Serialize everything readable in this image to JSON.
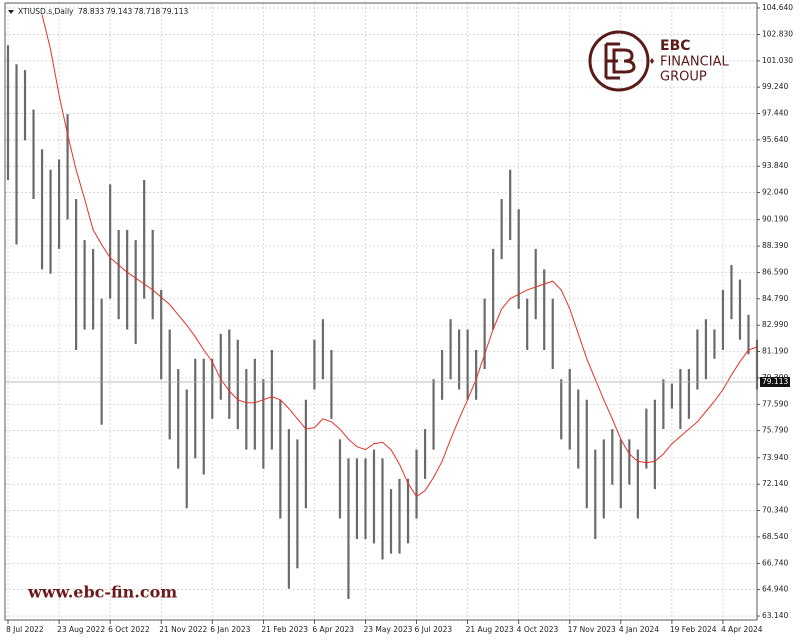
{
  "chart_data": {
    "type": "ohlc",
    "header": {
      "symbol": "XTIUSD.s,Daily",
      "open": 78.833,
      "high": 79.143,
      "low": 78.718,
      "close": 79.113
    },
    "categories": [
      "8 Jul 2022",
      null,
      null,
      null,
      null,
      null,
      "23 Aug 2022",
      null,
      null,
      null,
      null,
      null,
      "6 Oct 2022",
      null,
      null,
      null,
      null,
      null,
      "21 Nov 2022",
      null,
      null,
      null,
      null,
      null,
      "6 Jan 2023",
      null,
      null,
      null,
      null,
      null,
      "21 Feb 2023",
      null,
      null,
      null,
      null,
      null,
      "6 Apr 2023",
      null,
      null,
      null,
      null,
      null,
      "23 May 2023",
      null,
      null,
      null,
      null,
      null,
      "6 Jul 2023",
      null,
      null,
      null,
      null,
      null,
      "21 Aug 2023",
      null,
      null,
      null,
      null,
      null,
      "4 Oct 2023",
      null,
      null,
      null,
      null,
      null,
      "17 Nov 2023",
      null,
      null,
      null,
      null,
      null,
      "4 Jan 2024",
      null,
      null,
      null,
      null,
      null,
      "19 Feb 2024",
      null,
      null,
      null,
      null,
      null,
      "4 Apr 2024",
      null,
      null,
      null,
      null
    ],
    "high": [
      102.1,
      100.8,
      100.4,
      97.7,
      95.0,
      93.6,
      94.3,
      97.4,
      91.6,
      88.8,
      88.2,
      84.8,
      92.6,
      89.5,
      89.5,
      88.8,
      92.9,
      89.5,
      85.4,
      82.7,
      80.0,
      78.6,
      80.7,
      80.7,
      80.7,
      82.4,
      82.7,
      82.0,
      80.0,
      80.7,
      79.3,
      81.3,
      77.9,
      75.9,
      75.2,
      77.9,
      82.0,
      83.4,
      81.3,
      75.2,
      73.9,
      73.9,
      73.9,
      74.5,
      73.9,
      71.8,
      72.5,
      72.5,
      74.5,
      75.9,
      79.3,
      81.3,
      83.4,
      82.7,
      82.7,
      81.3,
      84.8,
      88.2,
      91.6,
      93.6,
      90.9,
      84.8,
      88.2,
      86.8,
      84.8,
      79.3,
      80.0,
      78.6,
      77.9,
      74.5,
      75.2,
      75.9,
      75.2,
      75.2,
      74.5,
      77.3,
      77.9,
      79.3,
      79.0,
      80.0,
      80.0,
      82.7,
      83.4,
      82.7,
      85.4,
      87.1,
      86.1,
      83.7,
      82.0
    ],
    "low": [
      92.9,
      88.5,
      95.6,
      91.6,
      86.8,
      86.5,
      88.2,
      90.2,
      81.3,
      82.7,
      82.7,
      76.2,
      84.8,
      83.4,
      82.7,
      81.7,
      84.8,
      83.4,
      79.3,
      75.2,
      73.2,
      70.5,
      73.9,
      72.8,
      76.6,
      77.9,
      76.6,
      75.9,
      74.5,
      74.5,
      73.2,
      74.5,
      69.8,
      65.0,
      66.4,
      70.5,
      78.6,
      79.3,
      76.6,
      69.8,
      64.3,
      68.4,
      68.4,
      68.1,
      67.0,
      67.4,
      67.4,
      68.1,
      69.8,
      72.5,
      74.5,
      77.9,
      79.3,
      78.6,
      77.9,
      77.9,
      80.0,
      82.7,
      87.5,
      88.8,
      84.1,
      81.3,
      83.4,
      81.3,
      80.0,
      75.2,
      74.5,
      73.2,
      70.5,
      68.4,
      69.8,
      72.1,
      70.5,
      72.1,
      69.8,
      73.2,
      71.8,
      75.9,
      77.3,
      75.9,
      76.6,
      78.6,
      79.3,
      80.7,
      81.3,
      83.4,
      82.0,
      81.0,
      78.6
    ],
    "bar_color": "#6a6a6a",
    "ma": {
      "color": "#e8302a",
      "values": [
        null,
        null,
        null,
        null,
        104.2,
        101.8,
        98.7,
        96.0,
        93.6,
        91.6,
        89.5,
        88.5,
        87.6,
        87.1,
        86.6,
        86.2,
        85.8,
        85.4,
        84.9,
        84.4,
        83.7,
        83.0,
        82.2,
        81.3,
        80.5,
        79.3,
        78.5,
        77.9,
        77.7,
        77.7,
        77.9,
        78.1,
        77.9,
        77.3,
        76.6,
        75.9,
        76.0,
        76.6,
        76.4,
        75.9,
        75.2,
        74.7,
        74.5,
        74.9,
        75.0,
        74.5,
        73.5,
        72.2,
        71.3,
        71.7,
        72.6,
        73.7,
        75.2,
        76.6,
        77.9,
        79.3,
        81.0,
        82.7,
        84.1,
        84.8,
        85.1,
        85.4,
        85.6,
        85.8,
        86.0,
        85.4,
        84.1,
        82.4,
        80.7,
        79.3,
        77.9,
        76.6,
        75.2,
        74.2,
        73.7,
        73.6,
        73.7,
        74.2,
        74.9,
        75.4,
        75.9,
        76.4,
        77.1,
        77.8,
        78.6,
        79.6,
        80.5,
        81.3,
        81.5
      ]
    },
    "ylim": [
      62.87,
      104.98
    ],
    "yticks": [
      {
        "value": 104.64,
        "label": "104.640"
      },
      {
        "value": 102.83,
        "label": "102.830"
      },
      {
        "value": 101.03,
        "label": "101.030"
      },
      {
        "value": 99.24,
        "label": "99.240"
      },
      {
        "value": 97.44,
        "label": "97.440"
      },
      {
        "value": 95.64,
        "label": "95.640"
      },
      {
        "value": 93.84,
        "label": "93.840"
      },
      {
        "value": 92.04,
        "label": "92.040"
      },
      {
        "value": 90.19,
        "label": "90.190"
      },
      {
        "value": 88.39,
        "label": "88.390"
      },
      {
        "value": 86.59,
        "label": "86.590"
      },
      {
        "value": 84.79,
        "label": "84.790"
      },
      {
        "value": 82.99,
        "label": "82.990"
      },
      {
        "value": 81.19,
        "label": "81.190"
      },
      {
        "value": 79.39,
        "label": "79.390"
      },
      {
        "value": 77.59,
        "label": "77.590"
      },
      {
        "value": 75.79,
        "label": "75.790"
      },
      {
        "value": 73.94,
        "label": "73.940"
      },
      {
        "value": 72.14,
        "label": "72.140"
      },
      {
        "value": 70.34,
        "label": "70.340"
      },
      {
        "value": 68.54,
        "label": "68.540"
      },
      {
        "value": 66.74,
        "label": "66.740"
      },
      {
        "value": 64.94,
        "label": "64.940"
      },
      {
        "value": 63.14,
        "label": "63.140"
      }
    ],
    "grid": true
  },
  "branding": {
    "logo_lines": [
      "EBC",
      "FINANCIAL",
      "GROUP"
    ],
    "website": "www.ebc-fin.com"
  }
}
